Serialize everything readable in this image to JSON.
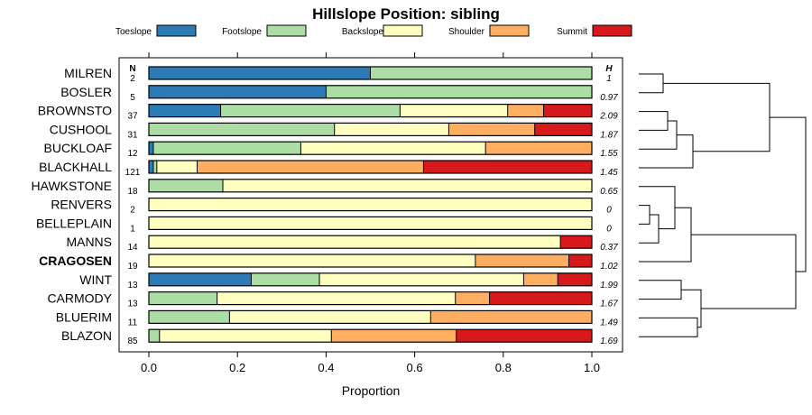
{
  "chart_data": {
    "type": "bar",
    "orientation": "horizontal",
    "stacked": true,
    "title": "Hillslope Position: sibling",
    "xlabel": "Proportion",
    "ylabel": "",
    "xlim": [
      0,
      1
    ],
    "x_ticks": [
      "0.0",
      "0.2",
      "0.4",
      "0.6",
      "0.8",
      "1.0"
    ],
    "n_header": "N",
    "h_header": "H",
    "legend": [
      {
        "name": "Toeslope",
        "color": "#2c7bb6"
      },
      {
        "name": "Footslope",
        "color": "#abdda4"
      },
      {
        "name": "Backslope",
        "color": "#ffffbf"
      },
      {
        "name": "Shoulder",
        "color": "#fdae61"
      },
      {
        "name": "Summit",
        "color": "#d7191c"
      }
    ],
    "categories": [
      "MILREN",
      "BOSLER",
      "BROWNSTO",
      "CUSHOOL",
      "BUCKLOAF",
      "BLACKHALL",
      "HAWKSTONE",
      "RENVERS",
      "BELLEPLAIN",
      "MANNS",
      "CRAGOSEN",
      "WINT",
      "CARMODY",
      "BLUERIM",
      "BLAZON"
    ],
    "highlighted_category": "CRAGOSEN",
    "n": [
      "2",
      "5",
      "37",
      "31",
      "12",
      "121",
      "18",
      "2",
      "1",
      "14",
      "19",
      "13",
      "13",
      "11",
      "85"
    ],
    "h": [
      "1",
      "0.97",
      "2.09",
      "1.87",
      "1.55",
      "1.45",
      "0.65",
      "0",
      "0",
      "0.37",
      "1.02",
      "1.99",
      "1.67",
      "1.49",
      "1.69"
    ],
    "series": [
      {
        "name": "Toeslope",
        "values": [
          0.5,
          0.4,
          0.162,
          0,
          0.01,
          0.01,
          0,
          0,
          0,
          0,
          0,
          0.231,
          0,
          0,
          0
        ]
      },
      {
        "name": "Footslope",
        "values": [
          0.5,
          0.6,
          0.405,
          0.419,
          0.333,
          0.008,
          0.167,
          0,
          0,
          0,
          0,
          0.154,
          0.154,
          0.182,
          0.024
        ]
      },
      {
        "name": "Backslope",
        "values": [
          0,
          0,
          0.243,
          0.258,
          0.417,
          0.091,
          0.833,
          1,
          1,
          0.929,
          0.737,
          0.461,
          0.538,
          0.454,
          0.388
        ]
      },
      {
        "name": "Shoulder",
        "values": [
          0,
          0,
          0.081,
          0.194,
          0.24,
          0.511,
          0,
          0,
          0,
          0,
          0.211,
          0.077,
          0.077,
          0.364,
          0.282
        ]
      },
      {
        "name": "Summit",
        "values": [
          0,
          0,
          0.109,
          0.129,
          0,
          0.38,
          0,
          0,
          0,
          0.071,
          0.052,
          0.077,
          0.231,
          0,
          0.306
        ]
      }
    ]
  }
}
